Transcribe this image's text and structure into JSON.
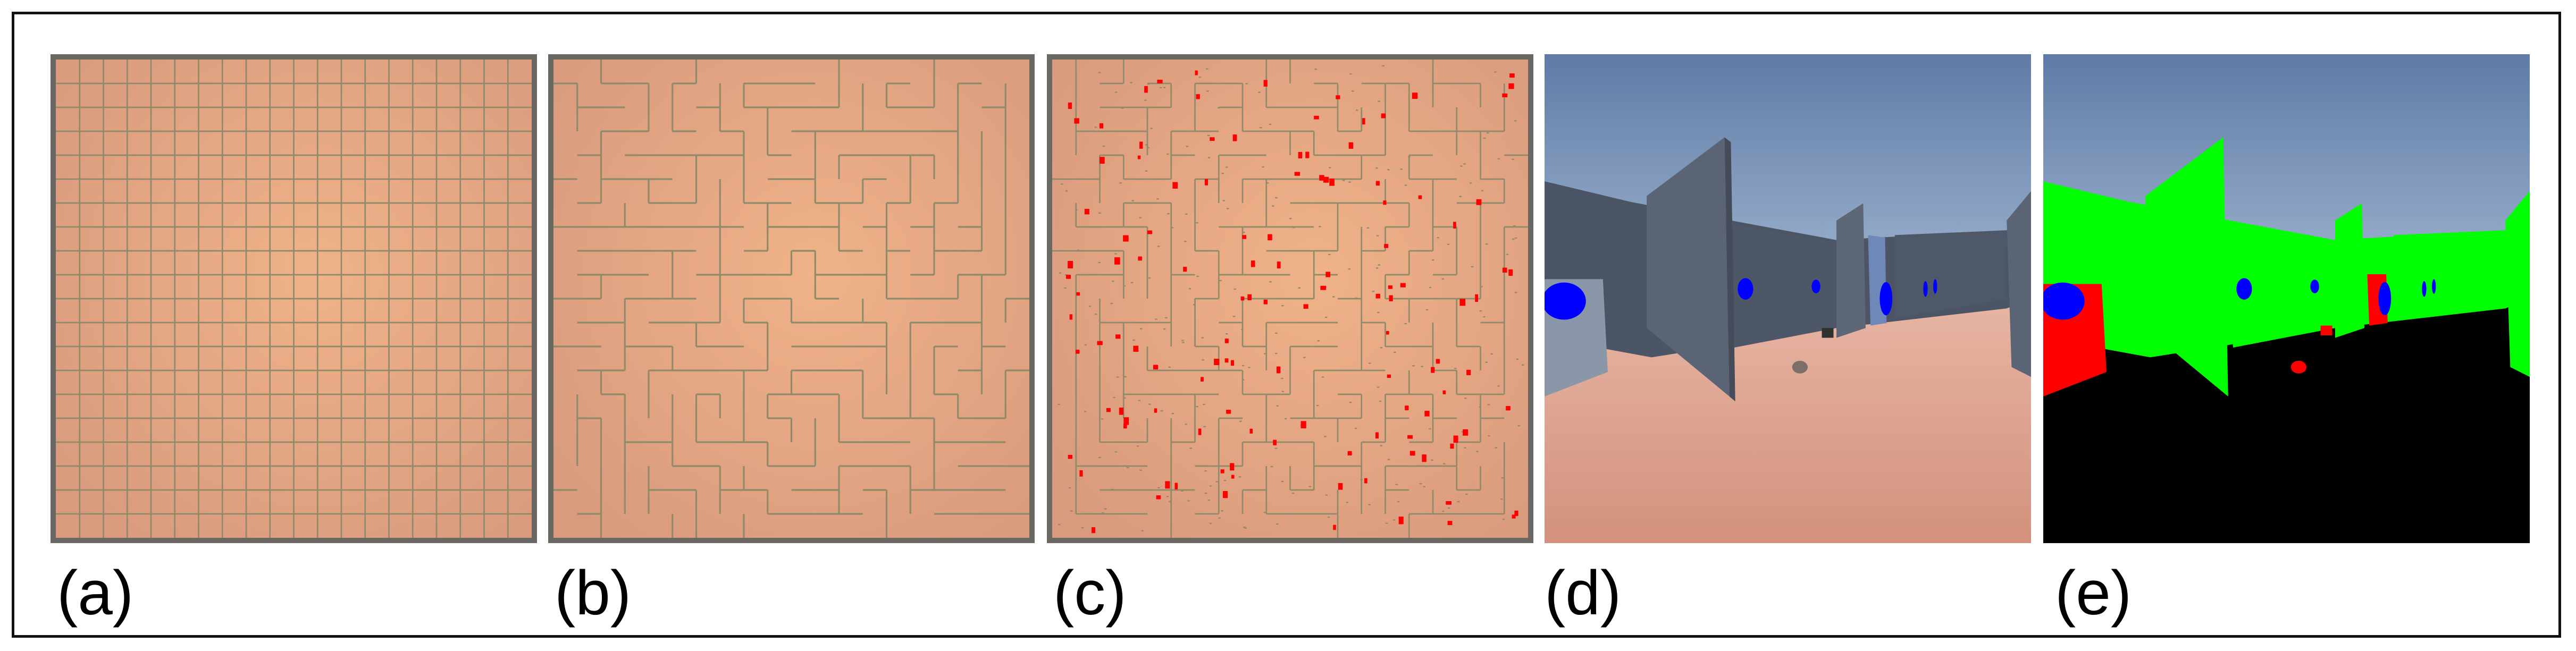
{
  "figure": {
    "panels": [
      {
        "id": "a",
        "label": "(a)",
        "content": "grid-maze"
      },
      {
        "id": "b",
        "label": "(b)",
        "content": "labyrinth-maze"
      },
      {
        "id": "c",
        "label": "(c)",
        "content": "maze-with-red-objects"
      },
      {
        "id": "d",
        "label": "(d)",
        "content": "first-person-rgb-view"
      },
      {
        "id": "e",
        "label": "(e)",
        "content": "semantic-segmentation-view"
      }
    ]
  },
  "colors": {
    "floor": "#e9a882",
    "maze_wall": "#8f8a6a",
    "frame": "#6b6763",
    "sky": "#6b86ad",
    "wall_3d": "#5a6474",
    "seg_wall": "#00ff00",
    "seg_goal": "#0000ff",
    "seg_object": "#ff0000",
    "seg_floor": "#000000"
  }
}
